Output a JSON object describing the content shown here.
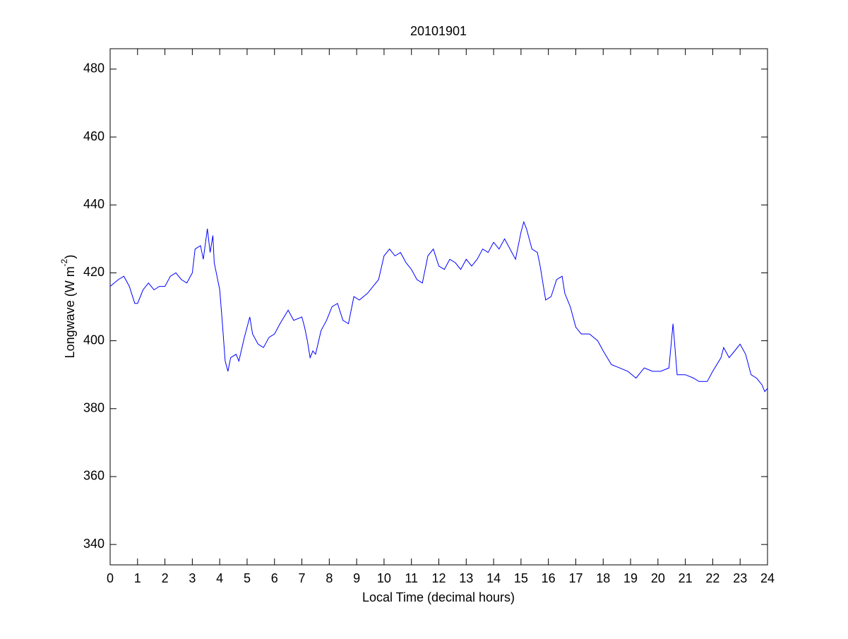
{
  "chart_data": {
    "type": "line",
    "title": "20101901",
    "xlabel": "Local Time (decimal hours)",
    "ylabel": {
      "text": "Longwave (W m",
      "superscript": "-2",
      "suffix": ")"
    },
    "x": [
      0,
      0.3,
      0.5,
      0.7,
      0.9,
      1.0,
      1.2,
      1.4,
      1.6,
      1.8,
      2.0,
      2.2,
      2.4,
      2.6,
      2.8,
      3.0,
      3.1,
      3.3,
      3.4,
      3.55,
      3.65,
      3.75,
      3.8,
      3.9,
      4.0,
      4.1,
      4.2,
      4.3,
      4.4,
      4.6,
      4.7,
      4.9,
      5.1,
      5.2,
      5.4,
      5.6,
      5.8,
      6.0,
      6.2,
      6.5,
      6.7,
      7.0,
      7.1,
      7.2,
      7.3,
      7.4,
      7.5,
      7.7,
      7.9,
      8.1,
      8.3,
      8.5,
      8.7,
      8.9,
      9.1,
      9.4,
      9.6,
      9.8,
      10.0,
      10.2,
      10.4,
      10.6,
      10.8,
      11.0,
      11.2,
      11.4,
      11.6,
      11.8,
      12.0,
      12.2,
      12.4,
      12.6,
      12.8,
      13.0,
      13.2,
      13.4,
      13.6,
      13.8,
      14.0,
      14.2,
      14.4,
      14.6,
      14.8,
      15.0,
      15.1,
      15.2,
      15.4,
      15.6,
      15.7,
      15.9,
      16.1,
      16.3,
      16.5,
      16.6,
      16.8,
      17.0,
      17.2,
      17.5,
      17.8,
      18.0,
      18.3,
      18.6,
      18.9,
      19.2,
      19.5,
      19.8,
      20.1,
      20.4,
      20.55,
      20.7,
      21.0,
      21.3,
      21.5,
      21.8,
      22.0,
      22.3,
      22.4,
      22.6,
      22.8,
      23.0,
      23.2,
      23.4,
      23.6,
      23.8,
      23.9,
      24.0
    ],
    "series": [
      {
        "color": "#0000ff",
        "values": [
          416,
          418,
          419,
          416,
          411,
          411,
          415,
          417,
          415,
          416,
          416,
          419,
          420,
          418,
          417,
          420,
          427,
          428,
          424,
          433,
          426,
          431,
          423,
          419,
          415,
          405,
          394,
          391,
          395,
          396,
          394,
          401,
          407,
          402,
          399,
          398,
          401,
          402,
          405,
          409,
          406,
          407,
          404,
          400,
          395,
          397,
          396,
          403,
          406,
          410,
          411,
          406,
          405,
          413,
          412,
          414,
          416,
          418,
          425,
          427,
          425,
          426,
          423,
          421,
          418,
          417,
          425,
          427,
          422,
          421,
          424,
          423,
          421,
          424,
          422,
          424,
          427,
          426,
          429,
          427,
          430,
          427,
          424,
          432,
          435,
          433,
          427,
          426,
          422,
          412,
          413,
          418,
          419,
          414,
          410,
          404,
          402,
          402,
          400,
          397,
          393,
          392,
          391,
          389,
          392,
          391,
          391,
          392,
          405,
          390,
          390,
          389,
          388,
          388,
          391,
          395,
          398,
          395,
          397,
          399,
          396,
          390,
          389,
          387,
          385,
          386
        ]
      }
    ],
    "xlim": [
      0,
      24
    ],
    "xticks": [
      0,
      1,
      2,
      3,
      4,
      5,
      6,
      7,
      8,
      9,
      10,
      11,
      12,
      13,
      14,
      15,
      16,
      17,
      18,
      19,
      20,
      21,
      22,
      23,
      24
    ],
    "ylim": [
      334,
      486
    ],
    "yticks": [
      340,
      360,
      380,
      400,
      420,
      440,
      460,
      480
    ]
  }
}
